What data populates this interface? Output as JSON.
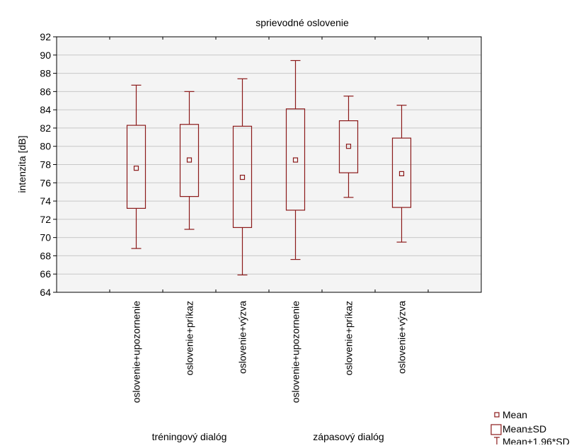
{
  "colors": {
    "background": "#f4f4f4",
    "grid": "#c8c8c8",
    "box": "#8b1a1a",
    "text": "#000000"
  },
  "chart_data": {
    "type": "box",
    "title": "sprievodné oslovenie",
    "ylabel": "intenzita [dB]",
    "ylim": [
      64,
      92
    ],
    "yticks": [
      64,
      66,
      68,
      70,
      72,
      74,
      76,
      78,
      80,
      82,
      84,
      86,
      88,
      90,
      92
    ],
    "grid": true,
    "legend_position": "bottom-right",
    "legend": [
      "Mean",
      "Mean±SD",
      "Mean±1,96*SD"
    ],
    "x_slots": 8,
    "categories": [
      "oslovenie+upozornenie",
      "oslovenie+príkaz",
      "oslovenie+výzva",
      "oslovenie+upozornenie",
      "oslovenie+príkaz",
      "oslovenie+výzva"
    ],
    "groups": [
      {
        "label": "tréningový dialóg"
      },
      {
        "label": "zápasový dialóg"
      }
    ],
    "series": [
      {
        "mean": 77.6,
        "sd_low": 73.2,
        "sd_high": 82.3,
        "ci_low": 68.8,
        "ci_high": 86.7
      },
      {
        "mean": 78.5,
        "sd_low": 74.5,
        "sd_high": 82.4,
        "ci_low": 70.9,
        "ci_high": 86.0
      },
      {
        "mean": 76.6,
        "sd_low": 71.1,
        "sd_high": 82.2,
        "ci_low": 65.9,
        "ci_high": 87.4
      },
      {
        "mean": 78.5,
        "sd_low": 73.0,
        "sd_high": 84.1,
        "ci_low": 67.6,
        "ci_high": 89.4
      },
      {
        "mean": 80.0,
        "sd_low": 77.1,
        "sd_high": 82.8,
        "ci_low": 74.4,
        "ci_high": 85.5
      },
      {
        "mean": 77.0,
        "sd_low": 73.3,
        "sd_high": 80.9,
        "ci_low": 69.5,
        "ci_high": 84.5
      }
    ]
  }
}
